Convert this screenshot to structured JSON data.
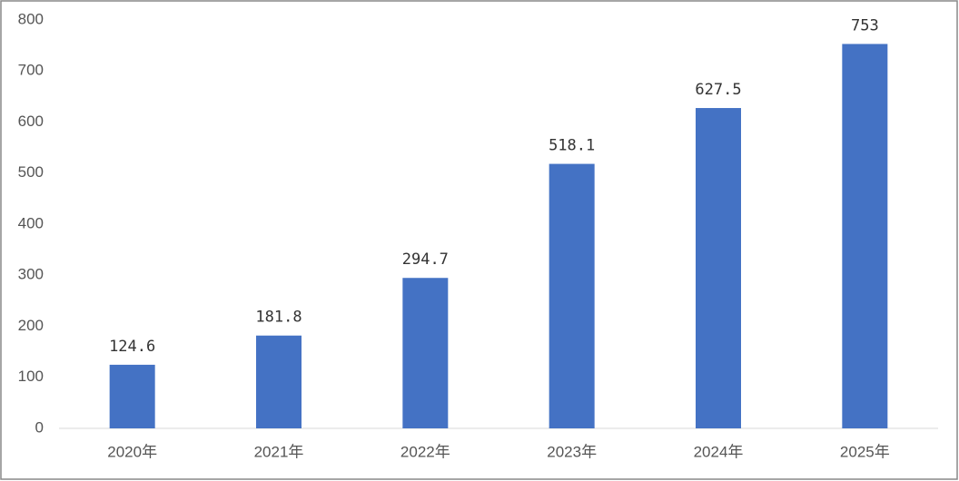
{
  "chart_data": {
    "type": "bar",
    "categories": [
      "2020年",
      "2021年",
      "2022年",
      "2023年",
      "2024年",
      "2025年"
    ],
    "values": [
      124.6,
      181.8,
      294.7,
      518.1,
      627.5,
      753
    ],
    "color": "#4472c4",
    "ylim": [
      0,
      800
    ],
    "yticks": [
      0,
      100,
      200,
      300,
      400,
      500,
      600,
      700,
      800
    ],
    "grid": false
  }
}
